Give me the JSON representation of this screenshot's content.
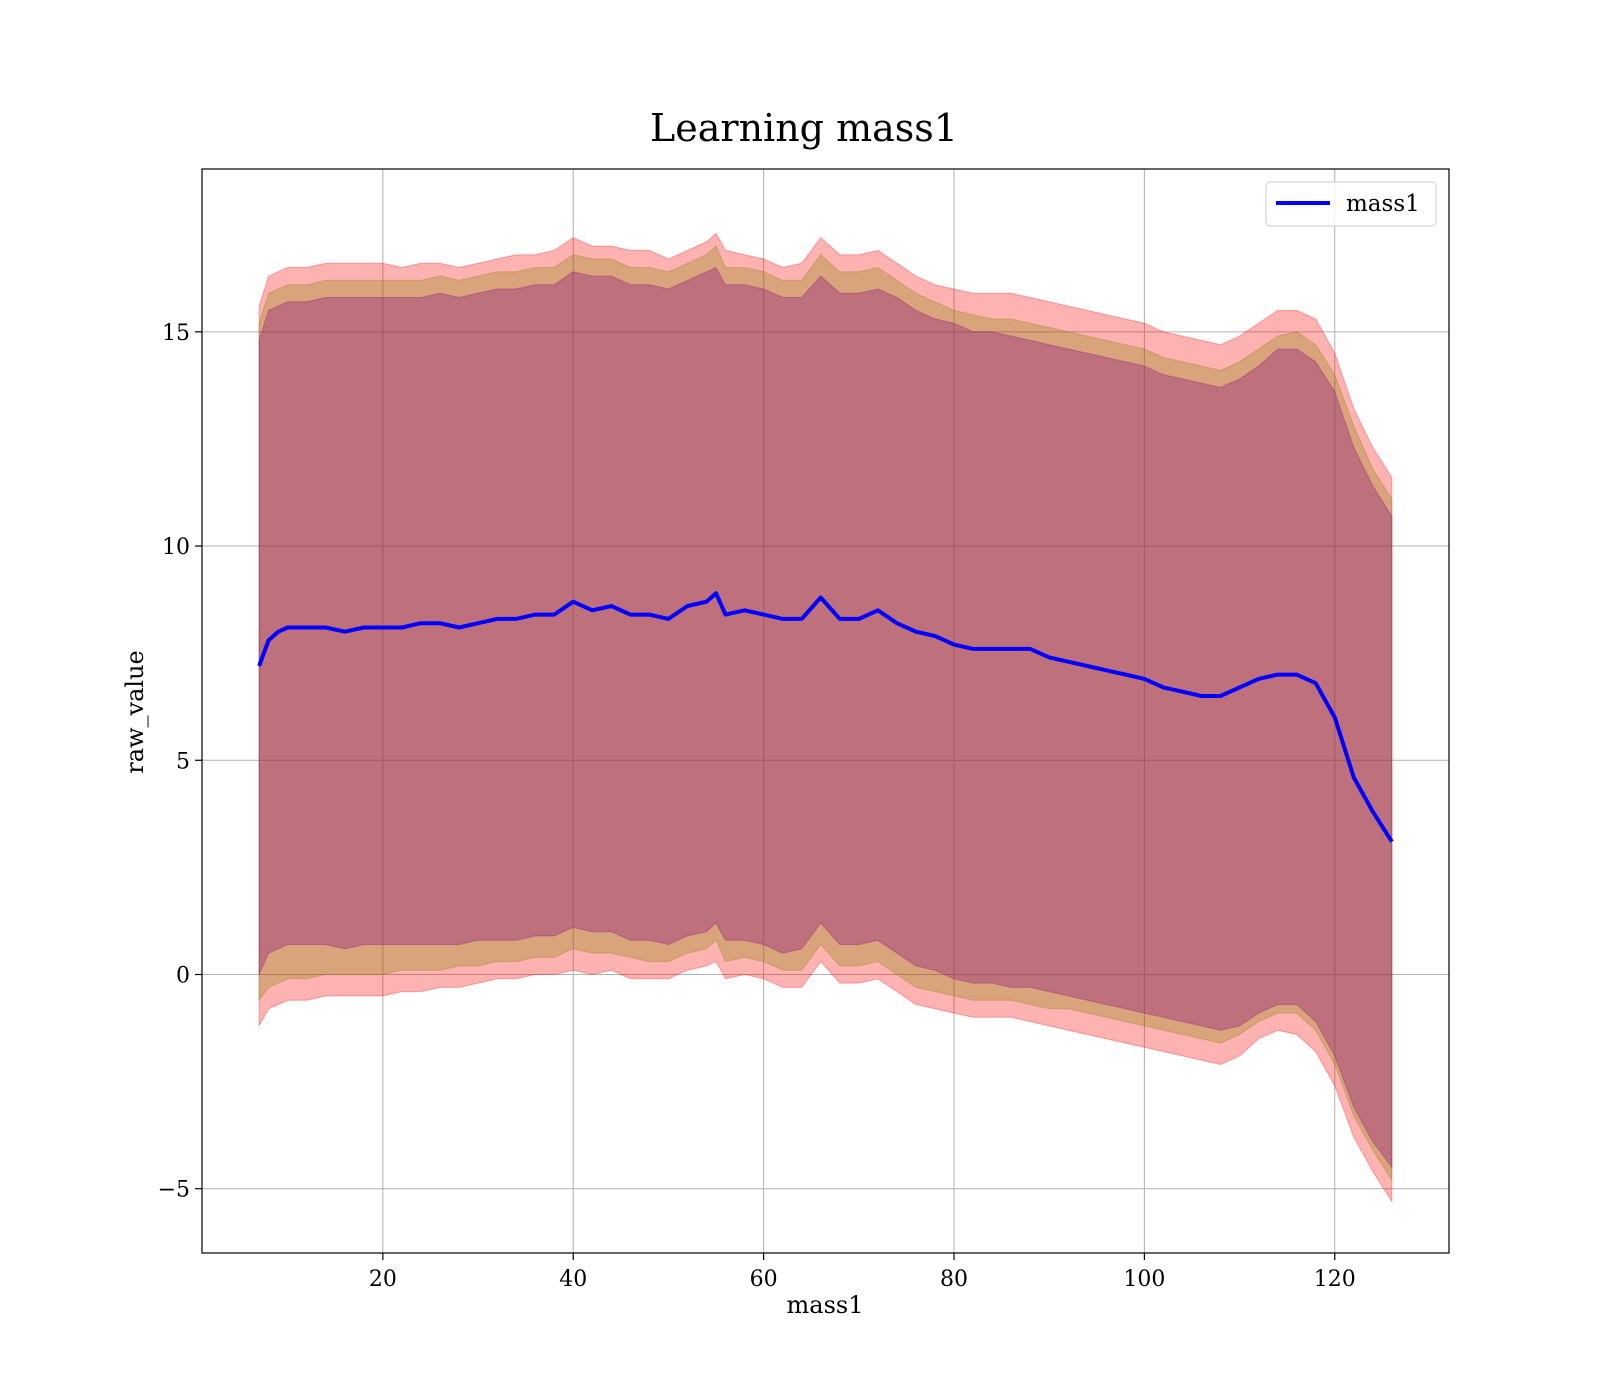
{
  "chart_data": {
    "type": "line",
    "title": "Learning mass1",
    "xlabel": "mass1",
    "ylabel": "raw_value",
    "xlim": [
      1,
      132
    ],
    "ylim": [
      -6.5,
      18.8
    ],
    "xticks": [
      20,
      40,
      60,
      80,
      100,
      120
    ],
    "yticks": [
      -5,
      0,
      5,
      10,
      15
    ],
    "xtick_labels": [
      "20",
      "40",
      "60",
      "80",
      "100",
      "120"
    ],
    "ytick_labels": [
      "−5",
      "0",
      "5",
      "10",
      "15"
    ],
    "grid": true,
    "legend": {
      "placement": "top-right",
      "entries": [
        "mass1"
      ]
    },
    "colors": {
      "line": "#0000ff",
      "outer_band": "#ff0000",
      "middle_band": "#808000",
      "inner_band": "#800080"
    },
    "series": [
      {
        "name": "mass1",
        "x": [
          7,
          8,
          9,
          10,
          12,
          14,
          16,
          18,
          20,
          22,
          24,
          26,
          28,
          30,
          32,
          34,
          36,
          38,
          40,
          42,
          44,
          46,
          48,
          50,
          52,
          54,
          55,
          56,
          58,
          60,
          62,
          64,
          66,
          68,
          70,
          72,
          74,
          76,
          78,
          80,
          82,
          84,
          86,
          88,
          90,
          92,
          94,
          96,
          98,
          100,
          102,
          104,
          106,
          108,
          110,
          112,
          114,
          116,
          118,
          120,
          122,
          124,
          126
        ],
        "y": [
          7.2,
          7.8,
          8.0,
          8.1,
          8.1,
          8.1,
          8.0,
          8.1,
          8.1,
          8.1,
          8.2,
          8.2,
          8.1,
          8.2,
          8.3,
          8.3,
          8.4,
          8.4,
          8.7,
          8.5,
          8.6,
          8.4,
          8.4,
          8.3,
          8.6,
          8.7,
          8.9,
          8.4,
          8.5,
          8.4,
          8.3,
          8.3,
          8.8,
          8.3,
          8.3,
          8.5,
          8.2,
          8.0,
          7.9,
          7.7,
          7.6,
          7.6,
          7.6,
          7.6,
          7.4,
          7.3,
          7.2,
          7.1,
          7.0,
          6.9,
          6.7,
          6.6,
          6.5,
          6.5,
          6.7,
          6.9,
          7.0,
          7.0,
          6.8,
          6.0,
          4.6,
          3.8,
          3.1
        ]
      }
    ],
    "bands": {
      "x": [
        7,
        8,
        9,
        10,
        12,
        14,
        16,
        18,
        20,
        22,
        24,
        26,
        28,
        30,
        32,
        34,
        36,
        38,
        40,
        42,
        44,
        46,
        48,
        50,
        52,
        54,
        55,
        56,
        58,
        60,
        62,
        64,
        66,
        68,
        70,
        72,
        74,
        76,
        78,
        80,
        82,
        84,
        86,
        88,
        90,
        92,
        94,
        96,
        98,
        100,
        102,
        104,
        106,
        108,
        110,
        112,
        114,
        116,
        118,
        120,
        122,
        124,
        126
      ],
      "outer_upper": [
        15.6,
        16.3,
        16.4,
        16.5,
        16.5,
        16.6,
        16.6,
        16.6,
        16.6,
        16.5,
        16.6,
        16.6,
        16.5,
        16.6,
        16.7,
        16.8,
        16.8,
        16.9,
        17.2,
        17.0,
        17.0,
        16.9,
        16.9,
        16.7,
        16.9,
        17.1,
        17.3,
        16.9,
        16.8,
        16.7,
        16.5,
        16.6,
        17.2,
        16.8,
        16.8,
        16.9,
        16.6,
        16.3,
        16.1,
        16.0,
        15.9,
        15.9,
        15.9,
        15.8,
        15.7,
        15.6,
        15.5,
        15.4,
        15.3,
        15.2,
        15.0,
        14.9,
        14.8,
        14.7,
        14.9,
        15.2,
        15.5,
        15.5,
        15.3,
        14.5,
        13.2,
        12.3,
        11.6
      ],
      "outer_lower": [
        -1.2,
        -0.8,
        -0.7,
        -0.6,
        -0.6,
        -0.5,
        -0.5,
        -0.5,
        -0.5,
        -0.4,
        -0.4,
        -0.3,
        -0.3,
        -0.2,
        -0.1,
        -0.1,
        0.0,
        0.0,
        0.1,
        0.0,
        0.1,
        -0.1,
        -0.1,
        -0.1,
        0.1,
        0.2,
        0.3,
        -0.1,
        0.0,
        -0.1,
        -0.3,
        -0.3,
        0.3,
        -0.2,
        -0.2,
        -0.1,
        -0.4,
        -0.7,
        -0.8,
        -0.9,
        -1.0,
        -1.0,
        -1.0,
        -1.1,
        -1.2,
        -1.3,
        -1.4,
        -1.5,
        -1.6,
        -1.7,
        -1.8,
        -1.9,
        -2.0,
        -2.1,
        -1.9,
        -1.5,
        -1.3,
        -1.4,
        -1.8,
        -2.6,
        -3.8,
        -4.6,
        -5.3
      ],
      "middle_upper": [
        15.2,
        15.9,
        16.0,
        16.1,
        16.1,
        16.2,
        16.2,
        16.2,
        16.2,
        16.2,
        16.2,
        16.3,
        16.2,
        16.3,
        16.4,
        16.4,
        16.5,
        16.5,
        16.8,
        16.7,
        16.7,
        16.5,
        16.5,
        16.4,
        16.6,
        16.8,
        17.0,
        16.5,
        16.5,
        16.4,
        16.2,
        16.2,
        16.8,
        16.4,
        16.4,
        16.5,
        16.2,
        15.9,
        15.7,
        15.5,
        15.4,
        15.3,
        15.3,
        15.2,
        15.1,
        15.0,
        14.9,
        14.8,
        14.7,
        14.6,
        14.4,
        14.3,
        14.2,
        14.1,
        14.3,
        14.6,
        14.9,
        15.0,
        14.7,
        14.0,
        12.8,
        11.8,
        11.1
      ],
      "middle_lower": [
        -0.6,
        -0.3,
        -0.2,
        -0.1,
        -0.1,
        0.0,
        0.0,
        0.0,
        0.0,
        0.1,
        0.1,
        0.1,
        0.2,
        0.2,
        0.3,
        0.3,
        0.4,
        0.4,
        0.6,
        0.5,
        0.5,
        0.4,
        0.3,
        0.3,
        0.5,
        0.6,
        0.8,
        0.3,
        0.4,
        0.3,
        0.1,
        0.1,
        0.7,
        0.2,
        0.2,
        0.3,
        0.0,
        -0.3,
        -0.4,
        -0.5,
        -0.6,
        -0.6,
        -0.6,
        -0.7,
        -0.8,
        -0.8,
        -0.9,
        -1.0,
        -1.1,
        -1.2,
        -1.3,
        -1.4,
        -1.5,
        -1.6,
        -1.4,
        -1.1,
        -0.9,
        -0.9,
        -1.3,
        -2.1,
        -3.3,
        -4.1,
        -4.8
      ],
      "inner_upper": [
        14.8,
        15.5,
        15.6,
        15.7,
        15.7,
        15.8,
        15.8,
        15.8,
        15.8,
        15.8,
        15.8,
        15.9,
        15.8,
        15.9,
        16.0,
        16.0,
        16.1,
        16.1,
        16.4,
        16.3,
        16.3,
        16.1,
        16.1,
        16.0,
        16.2,
        16.4,
        16.5,
        16.1,
        16.1,
        16.0,
        15.8,
        15.8,
        16.3,
        15.9,
        15.9,
        16.0,
        15.8,
        15.5,
        15.3,
        15.2,
        15.0,
        15.0,
        14.9,
        14.8,
        14.7,
        14.6,
        14.5,
        14.4,
        14.3,
        14.2,
        14.0,
        13.9,
        13.8,
        13.7,
        13.9,
        14.2,
        14.6,
        14.6,
        14.3,
        13.6,
        12.3,
        11.4,
        10.7
      ],
      "inner_lower": [
        0.0,
        0.5,
        0.6,
        0.7,
        0.7,
        0.7,
        0.6,
        0.7,
        0.7,
        0.7,
        0.7,
        0.7,
        0.7,
        0.8,
        0.8,
        0.8,
        0.9,
        0.9,
        1.1,
        1.0,
        1.0,
        0.8,
        0.8,
        0.7,
        0.9,
        1.0,
        1.2,
        0.8,
        0.8,
        0.7,
        0.5,
        0.6,
        1.2,
        0.7,
        0.7,
        0.8,
        0.5,
        0.2,
        0.1,
        -0.1,
        -0.2,
        -0.2,
        -0.3,
        -0.3,
        -0.4,
        -0.5,
        -0.6,
        -0.7,
        -0.8,
        -0.9,
        -1.0,
        -1.1,
        -1.2,
        -1.3,
        -1.2,
        -0.9,
        -0.7,
        -0.7,
        -1.1,
        -1.9,
        -3.1,
        -3.9,
        -4.5
      ]
    }
  }
}
